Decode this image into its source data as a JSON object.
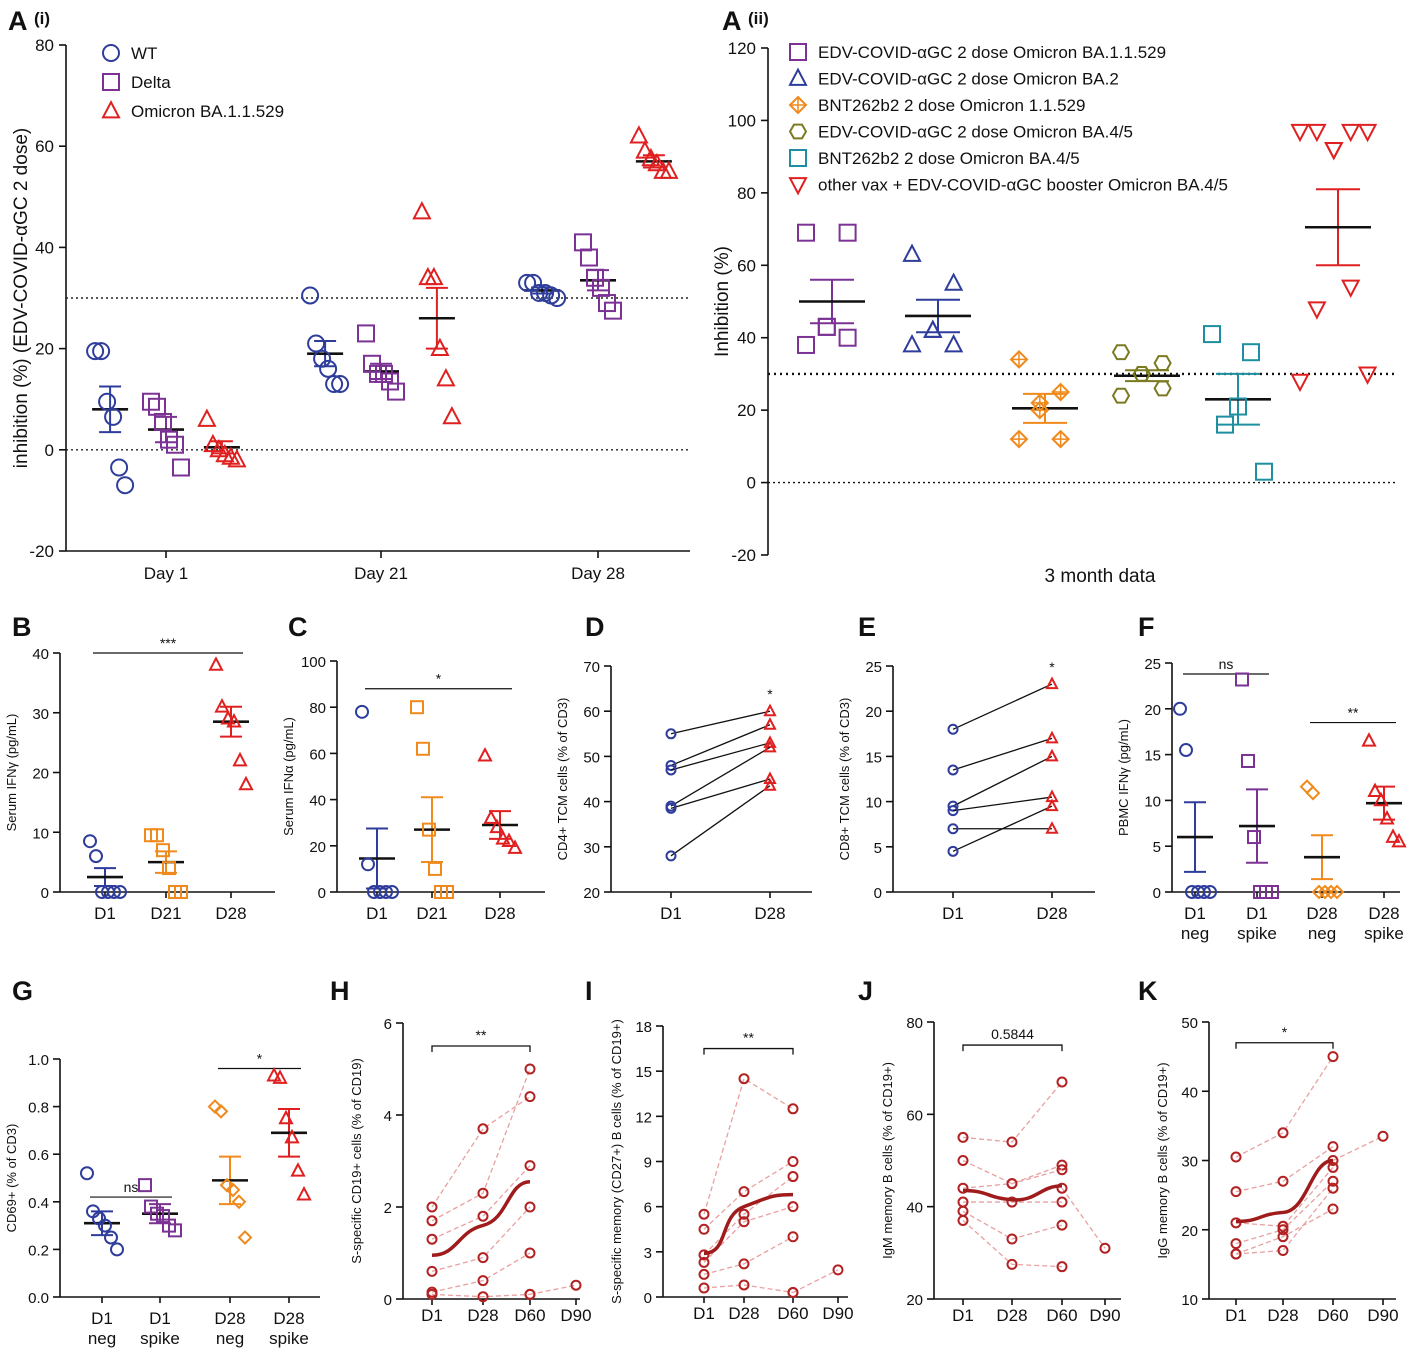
{
  "chart_data": [
    {
      "id": "Ai",
      "type": "scatter",
      "panel_label": "A",
      "panel_sub": "(i)",
      "ylabel": "inhibition (%) (EDV-COVID-αGC 2 dose)",
      "xlabel": "",
      "ylim": [
        -20,
        80
      ],
      "yticks": [
        -20,
        0,
        20,
        40,
        60,
        80
      ],
      "categories": [
        "Day 1",
        "Day 21",
        "Day 28"
      ],
      "ref_lines": [
        30,
        0
      ],
      "legend": [
        {
          "name": "WT",
          "shape": "circle",
          "color": "#2e3d9c"
        },
        {
          "name": "Delta",
          "shape": "square",
          "color": "#7b3294"
        },
        {
          "name": "Omicron BA.1.1.529",
          "shape": "triangle",
          "color": "#e02020"
        }
      ],
      "groups": [
        {
          "cat": 0,
          "off": -0.26,
          "shape": "circle",
          "color": "#2e3d9c",
          "mean": 8,
          "sem": 4.5,
          "points": [
            19.5,
            19.5,
            9.5,
            6.5,
            -3.5,
            -7
          ]
        },
        {
          "cat": 0,
          "off": 0,
          "shape": "square",
          "color": "#7b3294",
          "mean": 4,
          "sem": 2.5,
          "points": [
            9.5,
            8.5,
            5.5,
            2,
            1,
            -3.5
          ]
        },
        {
          "cat": 0,
          "off": 0.26,
          "shape": "triangle",
          "color": "#e02020",
          "mean": 0.5,
          "sem": 1.2,
          "points": [
            6,
            1,
            0,
            -1,
            -1.5,
            -2
          ]
        },
        {
          "cat": 1,
          "off": -0.26,
          "shape": "circle",
          "color": "#2e3d9c",
          "mean": 19,
          "sem": 2.5,
          "points": [
            30.5,
            21,
            18,
            16,
            13,
            13
          ]
        },
        {
          "cat": 1,
          "off": 0,
          "shape": "square",
          "color": "#7b3294",
          "mean": 15.5,
          "sem": 1.5,
          "points": [
            23,
            17,
            15,
            15,
            13.5,
            11.5
          ]
        },
        {
          "cat": 1,
          "off": 0.26,
          "shape": "triangle",
          "color": "#e02020",
          "mean": 26,
          "sem": 6,
          "points": [
            47,
            34,
            34,
            20,
            14,
            6.5
          ]
        },
        {
          "cat": 2,
          "off": -0.26,
          "shape": "circle",
          "color": "#2e3d9c",
          "mean": 31.5,
          "sem": 0.6,
          "points": [
            33,
            33,
            31,
            31,
            30.5,
            30
          ]
        },
        {
          "cat": 2,
          "off": 0,
          "shape": "square",
          "color": "#7b3294",
          "mean": 33.5,
          "sem": 2,
          "points": [
            41,
            38,
            34,
            32,
            29,
            27.5
          ]
        },
        {
          "cat": 2,
          "off": 0.26,
          "shape": "triangle",
          "color": "#e02020",
          "mean": 57,
          "sem": 1.2,
          "points": [
            62,
            59,
            57.5,
            56.5,
            55,
            55
          ]
        }
      ]
    },
    {
      "id": "Aii",
      "type": "scatter",
      "panel_label": "A",
      "panel_sub": "(ii)",
      "ylabel": "Inhibition (%)",
      "xlabel": "3 month data",
      "ylim": [
        -20,
        120
      ],
      "yticks": [
        -20,
        0,
        20,
        40,
        60,
        80,
        100,
        120
      ],
      "ref_lines": [
        30,
        0
      ],
      "legend": [
        {
          "name": "EDV-COVID-αGC 2 dose Omicron BA.1.1.529",
          "shape": "square",
          "color": "#7b3294"
        },
        {
          "name": "EDV-COVID-αGC 2 dose Omicron BA.2",
          "shape": "triangle",
          "color": "#2e3d9c"
        },
        {
          "name": "BNT262b2 2 dose Omicron 1.1.529",
          "shape": "diamondplus",
          "color": "#f08a1c"
        },
        {
          "name": "EDV-COVID-αGC 2 dose Omicron BA.4/5",
          "shape": "hexagon",
          "color": "#7a7a20"
        },
        {
          "name": "BNT262b2 2 dose Omicron BA.4/5",
          "shape": "square",
          "color": "#1e8fa0"
        },
        {
          "name": "other vax + EDV-COVID-αGC booster Omicron BA.4/5",
          "shape": "triangledown",
          "color": "#e02020"
        }
      ],
      "groups": [
        {
          "cat": 0,
          "off": 0,
          "shape": "square",
          "color": "#7b3294",
          "mean": 50,
          "sem": 6,
          "points": [
            69,
            69,
            43,
            43,
            40,
            38
          ]
        },
        {
          "cat": 1,
          "off": 0,
          "shape": "triangle",
          "color": "#2e3d9c",
          "mean": 46,
          "sem": 4.5,
          "points": [
            63,
            55,
            42,
            42,
            38,
            38
          ]
        },
        {
          "cat": 2,
          "off": 0,
          "shape": "diamondplus",
          "color": "#f08a1c",
          "mean": 20.5,
          "sem": 4,
          "points": [
            34,
            25,
            22,
            20,
            12,
            12
          ]
        },
        {
          "cat": 3,
          "off": 0,
          "shape": "hexagon",
          "color": "#7a7a20",
          "mean": 29.5,
          "sem": 1.5,
          "points": [
            36,
            33,
            30,
            30,
            26,
            24
          ]
        },
        {
          "cat": 4,
          "off": 0,
          "shape": "square",
          "color": "#1e8fa0",
          "mean": 23,
          "sem": 7,
          "points": [
            41,
            36,
            21,
            16,
            3
          ]
        },
        {
          "cat": 5,
          "off": 0,
          "shape": "triangledown",
          "color": "#e02020",
          "mean": 70.5,
          "sem": 10.5,
          "points": [
            97,
            97,
            97,
            97,
            92,
            92,
            54,
            48,
            30,
            28
          ]
        }
      ]
    },
    {
      "id": "B",
      "type": "scatter",
      "panel_label": "B",
      "ylabel": "Serum IFNγ (pg/mL)",
      "ylim": [
        0,
        40
      ],
      "yticks": [
        0,
        10,
        20,
        30,
        40
      ],
      "categories": [
        "D1",
        "D21",
        "D28"
      ],
      "sig": [
        {
          "from": 0,
          "to": 2,
          "y": 40,
          "label": "***"
        }
      ],
      "groups": [
        {
          "cat": 0,
          "shape": "circle",
          "color": "#2e3d9c",
          "mean": 2.5,
          "sem": 1.5,
          "points": [
            8.5,
            6,
            0,
            0,
            0,
            0
          ]
        },
        {
          "cat": 1,
          "shape": "square",
          "color": "#f08a1c",
          "mean": 5,
          "sem": 1.8,
          "points": [
            9.5,
            9.5,
            7,
            4,
            0,
            0
          ]
        },
        {
          "cat": 2,
          "shape": "triangle",
          "color": "#e02020",
          "mean": 28.5,
          "sem": 2.5,
          "points": [
            38,
            31,
            29,
            28.5,
            22,
            18
          ]
        }
      ]
    },
    {
      "id": "C",
      "type": "scatter",
      "panel_label": "C",
      "ylabel": "Serum IFNα (pg/mL)",
      "ylim": [
        0,
        100
      ],
      "yticks": [
        0,
        20,
        40,
        60,
        80,
        100
      ],
      "categories": [
        "D1",
        "D21",
        "D28"
      ],
      "sig": [
        {
          "from": 0,
          "to": 2,
          "y": 88,
          "label": "*"
        }
      ],
      "groups": [
        {
          "cat": 0,
          "shape": "circle",
          "color": "#2e3d9c",
          "mean": 14.5,
          "sem": 13,
          "points": [
            78,
            12,
            0,
            0,
            0,
            0
          ]
        },
        {
          "cat": 1,
          "shape": "square",
          "color": "#f08a1c",
          "mean": 27,
          "sem": 14,
          "points": [
            80,
            62,
            27,
            10,
            0,
            0
          ]
        },
        {
          "cat": 2,
          "shape": "triangle",
          "color": "#e02020",
          "mean": 29,
          "sem": 6,
          "points": [
            59,
            32,
            28,
            23,
            22,
            19
          ]
        }
      ]
    },
    {
      "id": "D",
      "type": "paired-line",
      "panel_label": "D",
      "ylabel": "CD4+ TCM cells (% of CD3)",
      "ylim": [
        20,
        70
      ],
      "yticks": [
        20,
        30,
        40,
        50,
        60,
        70
      ],
      "categories": [
        "D1",
        "D28"
      ],
      "sig_label": "*",
      "pairs": [
        [
          55,
          60
        ],
        [
          48,
          57
        ],
        [
          47,
          53
        ],
        [
          39,
          52
        ],
        [
          38.5,
          45
        ],
        [
          28,
          43.5
        ]
      ]
    },
    {
      "id": "E",
      "type": "paired-line",
      "panel_label": "E",
      "ylabel": "CD8+ TCM cells (% of CD3)",
      "ylim": [
        0,
        25
      ],
      "yticks": [
        0,
        5,
        10,
        15,
        20,
        25
      ],
      "categories": [
        "D1",
        "D28"
      ],
      "sig_label": "*",
      "pairs": [
        [
          18,
          23
        ],
        [
          13.5,
          17
        ],
        [
          9.5,
          15
        ],
        [
          9,
          10.5
        ],
        [
          7,
          7
        ],
        [
          4.5,
          9.5
        ]
      ]
    },
    {
      "id": "F",
      "type": "scatter",
      "panel_label": "F",
      "ylabel": "PBMC IFNγ (pg/mL)",
      "ylim": [
        0,
        25
      ],
      "yticks": [
        0,
        5,
        10,
        15,
        20,
        25
      ],
      "categories": [
        "D1\nneg",
        "D1\nspike",
        "D28\nneg",
        "D28\nspike"
      ],
      "sig": [
        {
          "from": 0,
          "to": 1,
          "y": 23.8,
          "label": "ns"
        },
        {
          "from": 2,
          "to": 3,
          "y": 18.5,
          "label": "**"
        }
      ],
      "groups": [
        {
          "cat": 0,
          "shape": "circle",
          "color": "#2e3d9c",
          "mean": 6,
          "sem": 3.8,
          "points": [
            20,
            15.5,
            0,
            0,
            0,
            0
          ]
        },
        {
          "cat": 1,
          "shape": "square",
          "color": "#7b3294",
          "mean": 7.2,
          "sem": 4,
          "points": [
            23.2,
            14.3,
            6,
            0,
            0,
            0
          ]
        },
        {
          "cat": 2,
          "shape": "diamond",
          "color": "#f08a1c",
          "mean": 3.8,
          "sem": 2.4,
          "points": [
            11.5,
            10.8,
            0,
            0,
            0,
            0
          ]
        },
        {
          "cat": 3,
          "shape": "triangle",
          "color": "#e02020",
          "mean": 9.7,
          "sem": 1.8,
          "points": [
            16.5,
            11,
            10,
            8,
            6,
            5.5
          ]
        }
      ]
    },
    {
      "id": "G",
      "type": "scatter",
      "panel_label": "G",
      "ylabel": "CD69+ (% of CD3)",
      "ylim": [
        0,
        1
      ],
      "yticks": [
        0.0,
        0.2,
        0.4,
        0.6,
        0.8,
        1.0
      ],
      "categories": [
        "D1\nneg",
        "D1\nspike",
        "D28\nneg",
        "D28\nspike"
      ],
      "sig": [
        {
          "from": 0,
          "to": 1,
          "y": 0.42,
          "label": "ns"
        },
        {
          "from": 2,
          "to": 3,
          "y": 0.96,
          "label": "*"
        }
      ],
      "groups": [
        {
          "cat": 0,
          "shape": "circle",
          "color": "#2e3d9c",
          "mean": 0.31,
          "sem": 0.05,
          "points": [
            0.52,
            0.36,
            0.33,
            0.3,
            0.25,
            0.2
          ]
        },
        {
          "cat": 1,
          "shape": "square",
          "color": "#7b3294",
          "mean": 0.35,
          "sem": 0.04,
          "points": [
            0.47,
            0.38,
            0.35,
            0.34,
            0.3,
            0.28
          ]
        },
        {
          "cat": 2,
          "shape": "diamond",
          "color": "#f08a1c",
          "mean": 0.49,
          "sem": 0.1,
          "points": [
            0.8,
            0.78,
            0.47,
            0.45,
            0.4,
            0.25
          ]
        },
        {
          "cat": 3,
          "shape": "triangle",
          "color": "#e02020",
          "mean": 0.69,
          "sem": 0.1,
          "points": [
            0.93,
            0.92,
            0.75,
            0.67,
            0.53,
            0.43
          ]
        }
      ]
    },
    {
      "id": "H",
      "type": "longitudinal",
      "panel_label": "H",
      "ylabel": "S-specific CD19+ cells (% of CD19)",
      "ylim": [
        0,
        6
      ],
      "yticks": [
        0,
        2,
        4,
        6
      ],
      "categories": [
        "D1",
        "D28",
        "D60",
        "D90"
      ],
      "sig": {
        "from": 0,
        "to": 2,
        "y": 5.5,
        "label": "**"
      },
      "subjects": [
        [
          2.0,
          3.7,
          4.4
        ],
        [
          1.7,
          2.3,
          5.0
        ],
        [
          1.3,
          1.8,
          2.9
        ],
        [
          0.6,
          0.9,
          2.0
        ],
        [
          0.15,
          0.4,
          1.0
        ],
        [
          0.1,
          0.05,
          0.1
        ],
        [
          null,
          null,
          0.1,
          0.3
        ]
      ],
      "mean_curve": [
        0.95,
        1.6,
        2.55
      ]
    },
    {
      "id": "I",
      "type": "longitudinal",
      "panel_label": "I",
      "ylabel": "S-specific memory (CD27+) B cells (% of  CD19+)",
      "ylim": [
        0,
        18
      ],
      "yticks": [
        0,
        3,
        6,
        9,
        12,
        15,
        18
      ],
      "categories": [
        "D1",
        "D28",
        "D60",
        "D90"
      ],
      "sig": {
        "from": 0,
        "to": 2,
        "y": 16.5,
        "label": "**"
      },
      "subjects": [
        [
          5.5,
          14.5,
          12.5
        ],
        [
          4.5,
          7.0,
          9.0
        ],
        [
          2.8,
          5.5,
          8.0
        ],
        [
          2.3,
          5.0,
          6.0
        ],
        [
          1.5,
          2.2,
          4.0
        ],
        [
          0.6,
          0.8,
          0.3
        ],
        [
          null,
          null,
          0.3,
          1.8
        ]
      ],
      "mean_curve": [
        2.9,
        6.0,
        6.8
      ]
    },
    {
      "id": "J",
      "type": "longitudinal",
      "panel_label": "J",
      "ylabel": "IgM memory B cells (% of CD19+)",
      "ylim": [
        20,
        80
      ],
      "yticks": [
        20,
        40,
        60,
        80
      ],
      "categories": [
        "D1",
        "D28",
        "D60",
        "D90"
      ],
      "sig": {
        "from": 0,
        "to": 2,
        "y": 75,
        "label": "0.5844"
      },
      "subjects": [
        [
          55,
          54,
          67
        ],
        [
          50,
          45,
          49
        ],
        [
          44,
          45,
          48
        ],
        [
          41,
          41,
          41
        ],
        [
          39,
          33,
          36
        ],
        [
          37,
          27.5,
          27
        ],
        [
          null,
          null,
          44,
          31
        ]
      ],
      "mean_curve": [
        43.5,
        41.5,
        44.5
      ]
    },
    {
      "id": "K",
      "type": "longitudinal",
      "panel_label": "K",
      "ylabel": "IgG memory B cells (% of CD19+)",
      "ylim": [
        10,
        50
      ],
      "yticks": [
        10,
        20,
        30,
        40,
        50
      ],
      "categories": [
        "D1",
        "D28",
        "D60",
        "D90"
      ],
      "sig": {
        "from": 0,
        "to": 2,
        "y": 47,
        "label": "*"
      },
      "subjects": [
        [
          30.5,
          34,
          45
        ],
        [
          25.5,
          27,
          32
        ],
        [
          21,
          20.5,
          29
        ],
        [
          18,
          20,
          27
        ],
        [
          16.5,
          19,
          23
        ],
        [
          16.5,
          17,
          26
        ],
        [
          null,
          null,
          30,
          33.5
        ]
      ],
      "mean_curve": [
        21.2,
        22.5,
        30
      ]
    }
  ]
}
